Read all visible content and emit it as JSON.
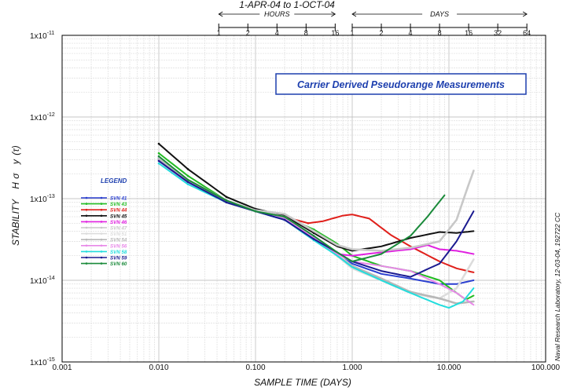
{
  "chart_data": {
    "type": "line",
    "title": "1-APR-04 to 1-OCT-04",
    "annotation": "Carrier Derived Pseudorange Measurements",
    "xlabel": "SAMPLE TIME (DAYS)",
    "ylabel_parts": [
      "STABILITY",
      "H",
      "σ",
      "y",
      "(τ)"
    ],
    "side_note": "Naval Research Laboratory, 12-03-04, 192722    CC",
    "x_scale": "log",
    "y_scale": "log",
    "xlim": [
      0.001,
      100
    ],
    "ylim": [
      1e-15,
      1e-11
    ],
    "grid": true,
    "x_ticks": [
      {
        "value": 0.001,
        "label": "0.001"
      },
      {
        "value": 0.01,
        "label": "0.010"
      },
      {
        "value": 0.1,
        "label": "0.100"
      },
      {
        "value": 1,
        "label": "1.000"
      },
      {
        "value": 10,
        "label": "10.000"
      },
      {
        "value": 100,
        "label": "100.000"
      }
    ],
    "y_ticks": [
      {
        "value": 1e-11,
        "mant": "1x10",
        "exp": "-11"
      },
      {
        "value": 1e-12,
        "mant": "1x10",
        "exp": "-12"
      },
      {
        "value": 1e-13,
        "mant": "1x10",
        "exp": "-13"
      },
      {
        "value": 1e-14,
        "mant": "1x10",
        "exp": "-14"
      },
      {
        "value": 1e-15,
        "mant": "1x10",
        "exp": "-15"
      }
    ],
    "top_axes": [
      {
        "label": "HOURS",
        "range_days": [
          0.041667,
          0.6667
        ],
        "ticks": [
          {
            "days": 0.041667,
            "label": "1"
          },
          {
            "days": 0.083333,
            "label": "2"
          },
          {
            "days": 0.166667,
            "label": "4"
          },
          {
            "days": 0.333333,
            "label": "8"
          },
          {
            "days": 0.666667,
            "label": "16"
          }
        ]
      },
      {
        "label": "DAYS",
        "range_days": [
          1,
          64
        ],
        "ticks": [
          {
            "days": 1,
            "label": "1"
          },
          {
            "days": 2,
            "label": "2"
          },
          {
            "days": 4,
            "label": "4"
          },
          {
            "days": 8,
            "label": "8"
          },
          {
            "days": 16,
            "label": "16"
          },
          {
            "days": 32,
            "label": "32"
          },
          {
            "days": 64,
            "label": "64"
          }
        ]
      }
    ],
    "legend_title": "LEGEND",
    "legend_position": "left-middle",
    "series": [
      {
        "name": "SVN 41",
        "color": "#2a3fd0",
        "points": [
          [
            0.01,
            3.1e-13
          ],
          [
            0.02,
            1.6e-13
          ],
          [
            0.05,
            9e-14
          ],
          [
            0.1,
            7e-14
          ],
          [
            0.2,
            5.5e-14
          ],
          [
            0.4,
            3.3e-14
          ],
          [
            0.7,
            2.2e-14
          ],
          [
            1,
            1.6e-14
          ],
          [
            2,
            1.2e-14
          ],
          [
            4,
            1.05e-14
          ],
          [
            8,
            9e-15
          ],
          [
            12,
            9e-15
          ],
          [
            18,
            1e-14
          ]
        ]
      },
      {
        "name": "SVN 43",
        "color": "#22bb22",
        "points": [
          [
            0.01,
            3.6e-13
          ],
          [
            0.02,
            1.9e-13
          ],
          [
            0.05,
            9.5e-14
          ],
          [
            0.1,
            7e-14
          ],
          [
            0.2,
            6e-14
          ],
          [
            0.4,
            4.2e-14
          ],
          [
            0.7,
            2.8e-14
          ],
          [
            1,
            2e-14
          ],
          [
            2,
            1.5e-14
          ],
          [
            4,
            1.3e-14
          ],
          [
            8,
            1e-14
          ],
          [
            12,
            7e-15
          ],
          [
            15,
            5.8e-15
          ],
          [
            18,
            6.5e-15
          ]
        ]
      },
      {
        "name": "SVN 44",
        "color": "#e0201b",
        "points": [
          [
            0.01,
            3e-13
          ],
          [
            0.02,
            1.6e-13
          ],
          [
            0.05,
            9e-14
          ],
          [
            0.1,
            7e-14
          ],
          [
            0.2,
            6e-14
          ],
          [
            0.35,
            5e-14
          ],
          [
            0.5,
            5.3e-14
          ],
          [
            0.8,
            6.2e-14
          ],
          [
            1,
            6.4e-14
          ],
          [
            1.5,
            5.7e-14
          ],
          [
            2.5,
            3.6e-14
          ],
          [
            4,
            2.6e-14
          ],
          [
            8,
            1.7e-14
          ],
          [
            12,
            1.4e-14
          ],
          [
            18,
            1.25e-14
          ]
        ]
      },
      {
        "name": "SVN 45",
        "color": "#111111",
        "points": [
          [
            0.01,
            4.7e-13
          ],
          [
            0.02,
            2.3e-13
          ],
          [
            0.05,
            1.05e-13
          ],
          [
            0.1,
            7.5e-14
          ],
          [
            0.2,
            6.2e-14
          ],
          [
            0.4,
            3.8e-14
          ],
          [
            0.7,
            2.6e-14
          ],
          [
            1,
            2.3e-14
          ],
          [
            2,
            2.6e-14
          ],
          [
            4,
            3.3e-14
          ],
          [
            8,
            3.9e-14
          ],
          [
            12,
            3.8e-14
          ],
          [
            18,
            4e-14
          ]
        ]
      },
      {
        "name": "SVN 46",
        "color": "#e020e0",
        "points": [
          [
            0.01,
            3e-13
          ],
          [
            0.02,
            1.6e-13
          ],
          [
            0.05,
            9e-14
          ],
          [
            0.1,
            7e-14
          ],
          [
            0.2,
            5.8e-14
          ],
          [
            0.4,
            3.2e-14
          ],
          [
            0.7,
            2.1e-14
          ],
          [
            1,
            2e-14
          ],
          [
            2,
            2.2e-14
          ],
          [
            4,
            2.4e-14
          ],
          [
            6,
            2.7e-14
          ],
          [
            8,
            2.4e-14
          ],
          [
            12,
            2.3e-14
          ],
          [
            18,
            2.1e-14
          ]
        ]
      },
      {
        "name": "SVN 47",
        "color": "#c8c8c8",
        "points": [
          [
            0.01,
            3.2e-13
          ],
          [
            0.02,
            1.7e-13
          ],
          [
            0.05,
            9.5e-14
          ],
          [
            0.1,
            7.2e-14
          ],
          [
            0.2,
            6.5e-14
          ],
          [
            0.4,
            4e-14
          ],
          [
            0.7,
            2.7e-14
          ],
          [
            1,
            2.4e-14
          ],
          [
            2,
            2.3e-14
          ],
          [
            4,
            2.5e-14
          ],
          [
            8,
            3e-14
          ],
          [
            12,
            5.5e-14
          ],
          [
            15,
            1.2e-13
          ],
          [
            18,
            2.2e-13
          ]
        ]
      },
      {
        "name": "SVN 51",
        "color": "#dcdcdc",
        "points": [
          [
            0.01,
            3e-13
          ],
          [
            0.02,
            1.6e-13
          ],
          [
            0.05,
            9.2e-14
          ],
          [
            0.1,
            7e-14
          ],
          [
            0.2,
            6e-14
          ],
          [
            0.4,
            3.4e-14
          ],
          [
            0.7,
            2e-14
          ],
          [
            1,
            1.4e-14
          ],
          [
            2,
            1e-14
          ],
          [
            4,
            7e-15
          ],
          [
            8,
            6e-15
          ],
          [
            12,
            8e-15
          ],
          [
            18,
            1.8e-14
          ]
        ]
      },
      {
        "name": "SVN 54",
        "color": "#b8b8b8",
        "points": [
          [
            0.01,
            3e-13
          ],
          [
            0.02,
            1.6e-13
          ],
          [
            0.05,
            9e-14
          ],
          [
            0.1,
            7e-14
          ],
          [
            0.2,
            5.6e-14
          ],
          [
            0.4,
            3.3e-14
          ],
          [
            0.7,
            2e-14
          ],
          [
            1,
            1.5e-14
          ],
          [
            2,
            1.05e-14
          ],
          [
            4,
            7.2e-15
          ],
          [
            8,
            6e-15
          ],
          [
            12,
            5.2e-15
          ],
          [
            18,
            5.5e-15
          ]
        ]
      },
      {
        "name": "SVN 56",
        "color": "#e888e8",
        "points": [
          [
            0.01,
            2.9e-13
          ],
          [
            0.02,
            1.55e-13
          ],
          [
            0.05,
            9e-14
          ],
          [
            0.1,
            7e-14
          ],
          [
            0.2,
            5.7e-14
          ],
          [
            0.4,
            3.3e-14
          ],
          [
            0.7,
            2.1e-14
          ],
          [
            1,
            1.7e-14
          ],
          [
            2,
            1.5e-14
          ],
          [
            4,
            1.3e-14
          ],
          [
            8,
            9e-15
          ],
          [
            12,
            7e-15
          ],
          [
            18,
            5e-15
          ]
        ]
      },
      {
        "name": "SVN 58",
        "color": "#22dddd",
        "points": [
          [
            0.01,
            2.7e-13
          ],
          [
            0.02,
            1.5e-13
          ],
          [
            0.05,
            9e-14
          ],
          [
            0.1,
            7e-14
          ],
          [
            0.2,
            5.5e-14
          ],
          [
            0.4,
            3.1e-14
          ],
          [
            0.7,
            2e-14
          ],
          [
            1,
            1.45e-14
          ],
          [
            2,
            1e-14
          ],
          [
            4,
            7e-15
          ],
          [
            8,
            5e-15
          ],
          [
            10,
            4.6e-15
          ],
          [
            14,
            5.5e-15
          ],
          [
            18,
            8e-15
          ]
        ]
      },
      {
        "name": "SVN 59",
        "color": "#1a1a90",
        "points": [
          [
            0.01,
            2.9e-13
          ],
          [
            0.02,
            1.6e-13
          ],
          [
            0.05,
            9e-14
          ],
          [
            0.1,
            7e-14
          ],
          [
            0.2,
            5.5e-14
          ],
          [
            0.4,
            3.2e-14
          ],
          [
            0.7,
            2.2e-14
          ],
          [
            1,
            1.7e-14
          ],
          [
            2,
            1.3e-14
          ],
          [
            4,
            1.1e-14
          ],
          [
            8,
            1.6e-14
          ],
          [
            12,
            3e-14
          ],
          [
            18,
            7e-14
          ]
        ]
      },
      {
        "name": "SVN 60",
        "color": "#1a8a3a",
        "points": [
          [
            0.01,
            3.3e-13
          ],
          [
            0.02,
            1.7e-13
          ],
          [
            0.05,
            9.5e-14
          ],
          [
            0.1,
            7e-14
          ],
          [
            0.2,
            6e-14
          ],
          [
            0.4,
            3.5e-14
          ],
          [
            0.7,
            2.2e-14
          ],
          [
            1,
            1.7e-14
          ],
          [
            2,
            2.1e-14
          ],
          [
            4,
            3.5e-14
          ],
          [
            6,
            6e-14
          ],
          [
            9,
            1.1e-13
          ]
        ]
      }
    ]
  }
}
